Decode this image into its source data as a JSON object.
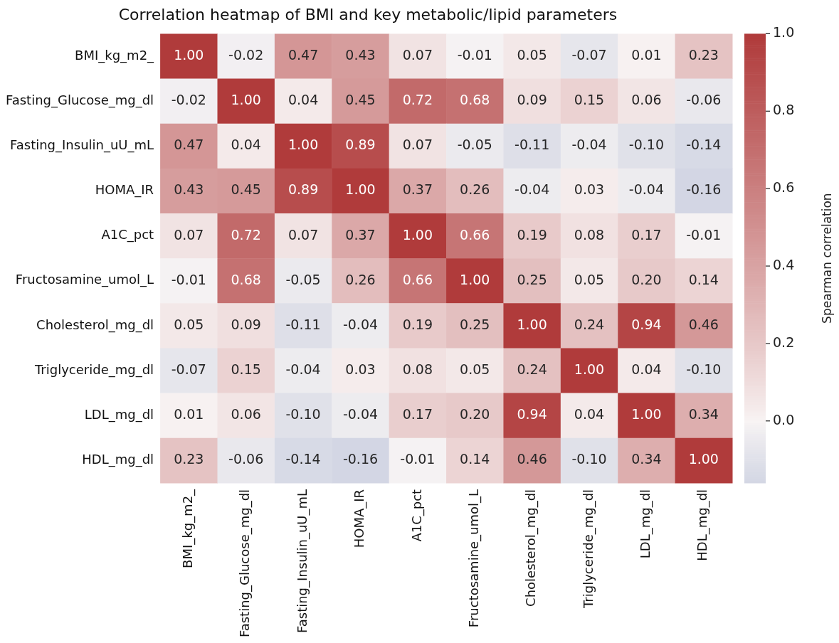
{
  "chart_data": {
    "type": "heatmap",
    "title": "Correlation heatmap of BMI and key metabolic/lipid parameters",
    "clabel": "Spearman correlation",
    "categories": [
      "BMI_kg_m2_",
      "Fasting_Glucose_mg_dl",
      "Fasting_Insulin_uU_mL",
      "HOMA_IR",
      "A1C_pct",
      "Fructosamine_umol_L",
      "Cholesterol_mg_dl",
      "Triglyceride_mg_dl",
      "LDL_mg_dl",
      "HDL_mg_dl"
    ],
    "y_categories": [
      "BMI_kg_m2_",
      "Fasting_Glucose_mg_dl",
      "Fasting_Insulin_uU_mL",
      "HOMA_IR",
      "A1C_pct",
      "Fructosamine_umol_L",
      "Cholesterol_mg_dl",
      "Triglyceride_mg_dl",
      "LDL_mg_dl",
      "HDL_mg_dl"
    ],
    "cells": [
      [
        1.0,
        -0.02,
        0.47,
        0.43,
        0.07,
        -0.01,
        0.05,
        -0.07,
        0.01,
        0.23
      ],
      [
        -0.02,
        1.0,
        0.04,
        0.45,
        0.72,
        0.68,
        0.09,
        0.15,
        0.06,
        -0.06
      ],
      [
        0.47,
        0.04,
        1.0,
        0.89,
        0.07,
        -0.05,
        -0.11,
        -0.04,
        -0.1,
        -0.14
      ],
      [
        0.43,
        0.45,
        0.89,
        1.0,
        0.37,
        0.26,
        -0.04,
        0.03,
        -0.04,
        -0.16
      ],
      [
        0.07,
        0.72,
        0.07,
        0.37,
        1.0,
        0.66,
        0.19,
        0.08,
        0.17,
        -0.01
      ],
      [
        -0.01,
        0.68,
        -0.05,
        0.26,
        0.66,
        1.0,
        0.25,
        0.05,
        0.2,
        0.14
      ],
      [
        0.05,
        0.09,
        -0.11,
        -0.04,
        0.19,
        0.25,
        1.0,
        0.24,
        0.94,
        0.46
      ],
      [
        -0.07,
        0.15,
        -0.04,
        0.03,
        0.08,
        0.05,
        0.24,
        1.0,
        0.04,
        -0.1
      ],
      [
        0.01,
        0.06,
        -0.1,
        -0.04,
        0.17,
        0.2,
        0.94,
        0.04,
        1.0,
        0.34
      ],
      [
        0.23,
        -0.06,
        -0.14,
        -0.16,
        -0.01,
        0.14,
        0.46,
        -0.1,
        0.34,
        1.0
      ]
    ],
    "cell_labels": [
      [
        "1.00",
        "-0.02",
        "0.47",
        "0.43",
        "0.07",
        "-0.01",
        "0.05",
        "-0.07",
        "0.01",
        "0.23"
      ],
      [
        "-0.02",
        "1.00",
        "0.04",
        "0.45",
        "0.72",
        "0.68",
        "0.09",
        "0.15",
        "0.06",
        "-0.06"
      ],
      [
        "0.47",
        "0.04",
        "1.00",
        "0.89",
        "0.07",
        "-0.05",
        "-0.11",
        "-0.04",
        "-0.10",
        "-0.14"
      ],
      [
        "0.43",
        "0.45",
        "0.89",
        "1.00",
        "0.37",
        "0.26",
        "-0.04",
        "0.03",
        "-0.04",
        "-0.16"
      ],
      [
        "0.07",
        "0.72",
        "0.07",
        "0.37",
        "1.00",
        "0.66",
        "0.19",
        "0.08",
        "0.17",
        "-0.01"
      ],
      [
        "-0.01",
        "0.68",
        "-0.05",
        "0.26",
        "0.66",
        "1.00",
        "0.25",
        "0.05",
        "0.20",
        "0.14"
      ],
      [
        "0.05",
        "0.09",
        "-0.11",
        "-0.04",
        "0.19",
        "0.25",
        "1.00",
        "0.24",
        "0.94",
        "0.46"
      ],
      [
        "-0.07",
        "0.15",
        "-0.04",
        "0.03",
        "0.08",
        "0.05",
        "0.24",
        "1.00",
        "0.04",
        "-0.10"
      ],
      [
        "0.01",
        "0.06",
        "-0.10",
        "-0.04",
        "0.17",
        "0.20",
        "0.94",
        "0.04",
        "1.00",
        "0.34"
      ],
      [
        "0.23",
        "-0.06",
        "-0.14",
        "-0.16",
        "-0.01",
        "0.14",
        "0.46",
        "-0.10",
        "0.34",
        "1.00"
      ]
    ],
    "clim": [
      -0.16,
      1.0
    ],
    "cticks": [
      {
        "value": 0,
        "label": "0.0"
      },
      {
        "value": 0.2,
        "label": "0.2"
      },
      {
        "value": 0.4,
        "label": "0.4"
      },
      {
        "value": 0.6,
        "label": "0.6"
      },
      {
        "value": 0.8,
        "label": "0.8"
      },
      {
        "value": 1,
        "label": "1.0"
      }
    ]
  }
}
